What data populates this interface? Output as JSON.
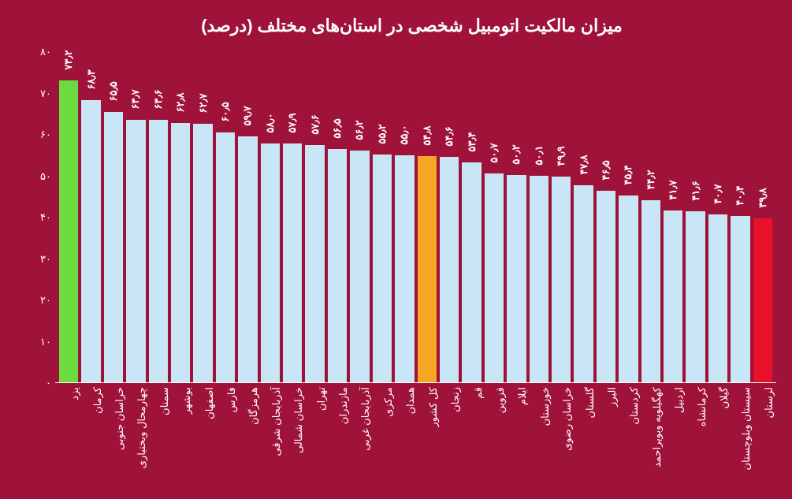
{
  "chart": {
    "type": "bar",
    "title": "میزان مالکیت اتومبیل شخصی در استان‌های مختلف (درصد)",
    "title_fontsize": 22,
    "background_color": "#9f1239",
    "text_color": "#ffffff",
    "ylim": [
      0,
      80
    ],
    "y_ticks": [
      0,
      10,
      20,
      30,
      40,
      50,
      60,
      70,
      80
    ],
    "y_tick_labels": [
      "۰",
      "۱۰",
      "۲۰",
      "۳۰",
      "۴۰",
      "۵۰",
      "۶۰",
      "۷۰",
      "۸۰"
    ],
    "default_bar_color": "#c8e6f5",
    "highlight_colors": {
      "max": "#6bdb3f",
      "national": "#f5a623",
      "min": "#e8132b"
    },
    "label_fontsize": 13,
    "value_fontsize": 13,
    "bars": [
      {
        "label": "یزد",
        "value": 73.2,
        "value_label": "۷۳٫۲",
        "color": "#6bdb3f"
      },
      {
        "label": "کرمان",
        "value": 68.3,
        "value_label": "۶۸٫۳",
        "color": "#c8e6f5"
      },
      {
        "label": "خراسان جنوبی",
        "value": 65.5,
        "value_label": "۶۵٫۵",
        "color": "#c8e6f5"
      },
      {
        "label": "چهارمحال وبختیاری",
        "value": 63.7,
        "value_label": "۶۳٫۷",
        "color": "#c8e6f5"
      },
      {
        "label": "سمنان",
        "value": 63.6,
        "value_label": "۶۳٫۶",
        "color": "#c8e6f5"
      },
      {
        "label": "بوشهر",
        "value": 62.8,
        "value_label": "۶۲٫۸",
        "color": "#c8e6f5"
      },
      {
        "label": "اصفهان",
        "value": 62.7,
        "value_label": "۶۲٫۷",
        "color": "#c8e6f5"
      },
      {
        "label": "فارس",
        "value": 60.5,
        "value_label": "۶۰٫۵",
        "color": "#c8e6f5"
      },
      {
        "label": "هرمزگان",
        "value": 59.7,
        "value_label": "۵۹٫۷",
        "color": "#c8e6f5"
      },
      {
        "label": "آذربایجان شرقی",
        "value": 58.0,
        "value_label": "۵۸٫۰",
        "color": "#c8e6f5"
      },
      {
        "label": "خراسان شمالی",
        "value": 57.9,
        "value_label": "۵۷٫۹",
        "color": "#c8e6f5"
      },
      {
        "label": "تهران",
        "value": 57.6,
        "value_label": "۵۷٫۶",
        "color": "#c8e6f5"
      },
      {
        "label": "مازندران",
        "value": 56.5,
        "value_label": "۵۶٫۵",
        "color": "#c8e6f5"
      },
      {
        "label": "آذربایجان غربی",
        "value": 56.2,
        "value_label": "۵۶٫۲",
        "color": "#c8e6f5"
      },
      {
        "label": "مرکزی",
        "value": 55.2,
        "value_label": "۵۵٫۲",
        "color": "#c8e6f5"
      },
      {
        "label": "همدان",
        "value": 55.0,
        "value_label": "۵۵٫۰",
        "color": "#c8e6f5"
      },
      {
        "label": "کل کشور",
        "value": 54.8,
        "value_label": "۵۴٫۸",
        "color": "#f5a623"
      },
      {
        "label": "زنجان",
        "value": 54.6,
        "value_label": "۵۴٫۶",
        "color": "#c8e6f5"
      },
      {
        "label": "قم",
        "value": 53.4,
        "value_label": "۵۳٫۴",
        "color": "#c8e6f5"
      },
      {
        "label": "قزوین",
        "value": 50.7,
        "value_label": "۵۰٫۷",
        "color": "#c8e6f5"
      },
      {
        "label": "ایلام",
        "value": 50.2,
        "value_label": "۵۰٫۲",
        "color": "#c8e6f5"
      },
      {
        "label": "خوزستان",
        "value": 50.1,
        "value_label": "۵۰٫۱",
        "color": "#c8e6f5"
      },
      {
        "label": "خراسان رضوی",
        "value": 49.9,
        "value_label": "۴۹٫۹",
        "color": "#c8e6f5"
      },
      {
        "label": "گلستان",
        "value": 47.8,
        "value_label": "۴۷٫۸",
        "color": "#c8e6f5"
      },
      {
        "label": "البرز",
        "value": 46.5,
        "value_label": "۴۶٫۵",
        "color": "#c8e6f5"
      },
      {
        "label": "کردستان",
        "value": 45.4,
        "value_label": "۴۵٫۴",
        "color": "#c8e6f5"
      },
      {
        "label": "کهگیلویه وبویراحمد",
        "value": 44.2,
        "value_label": "۴۴٫۲",
        "color": "#c8e6f5"
      },
      {
        "label": "اردبیل",
        "value": 41.7,
        "value_label": "۴۱٫۷",
        "color": "#c8e6f5"
      },
      {
        "label": "کرمانشاه",
        "value": 41.6,
        "value_label": "۴۱٫۶",
        "color": "#c8e6f5"
      },
      {
        "label": "گیلان",
        "value": 40.7,
        "value_label": "۴۰٫۷",
        "color": "#c8e6f5"
      },
      {
        "label": "سیستان وبلوچستان",
        "value": 40.4,
        "value_label": "۴۰٫۴",
        "color": "#c8e6f5"
      },
      {
        "label": "لرستان",
        "value": 39.8,
        "value_label": "۳۹٫۸",
        "color": "#e8132b"
      }
    ]
  }
}
